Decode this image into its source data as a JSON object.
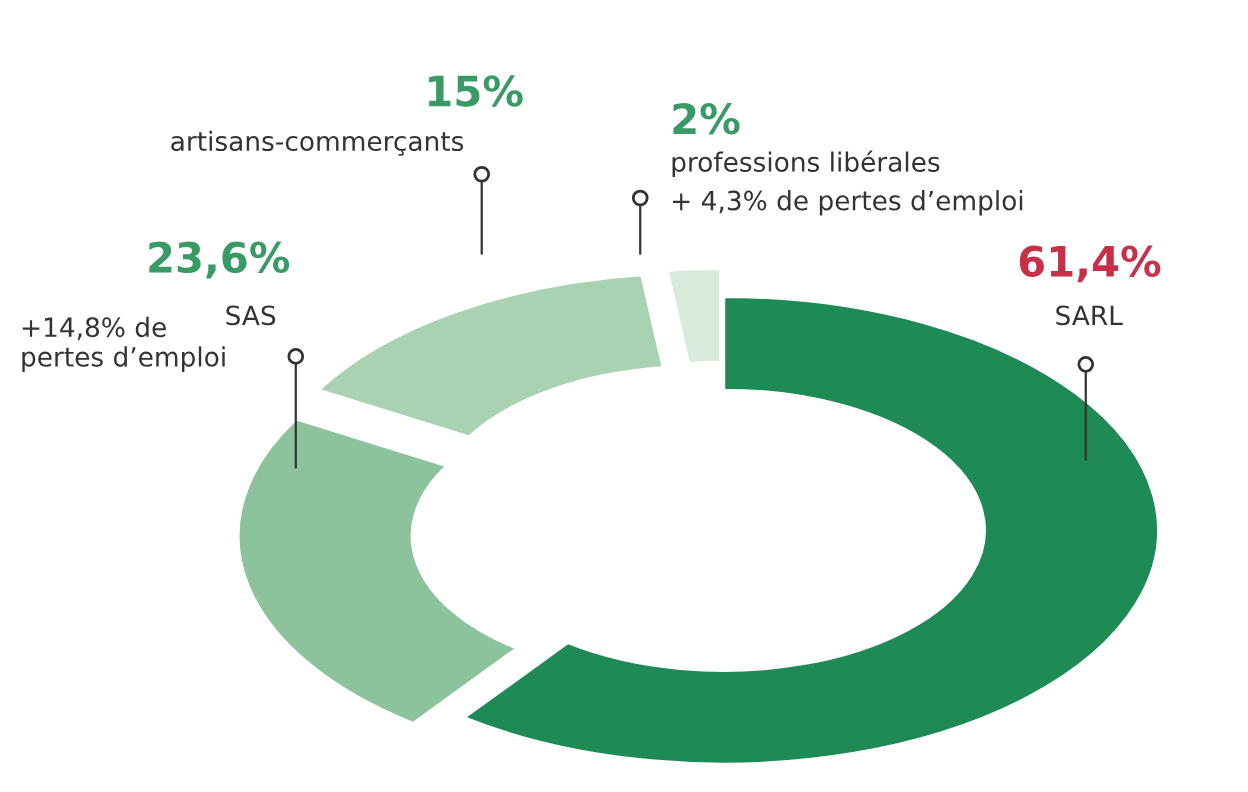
{
  "chart_data": {
    "type": "donut",
    "categories": [
      "SARL",
      "SAS",
      "artisans-commerçants",
      "professions libérales"
    ],
    "values": [
      61.4,
      23.6,
      15,
      2
    ],
    "colors": [
      "#1e8a55",
      "#8cc39c",
      "#a9d2b2",
      "#d8ebdb"
    ],
    "value_labels": [
      "61,4%",
      "23,6%",
      "15%",
      "2%"
    ],
    "annotations": [
      "+14,8% de\npertes d’emploi",
      "+ 4,3% de pertes d’emploi"
    ]
  }
}
